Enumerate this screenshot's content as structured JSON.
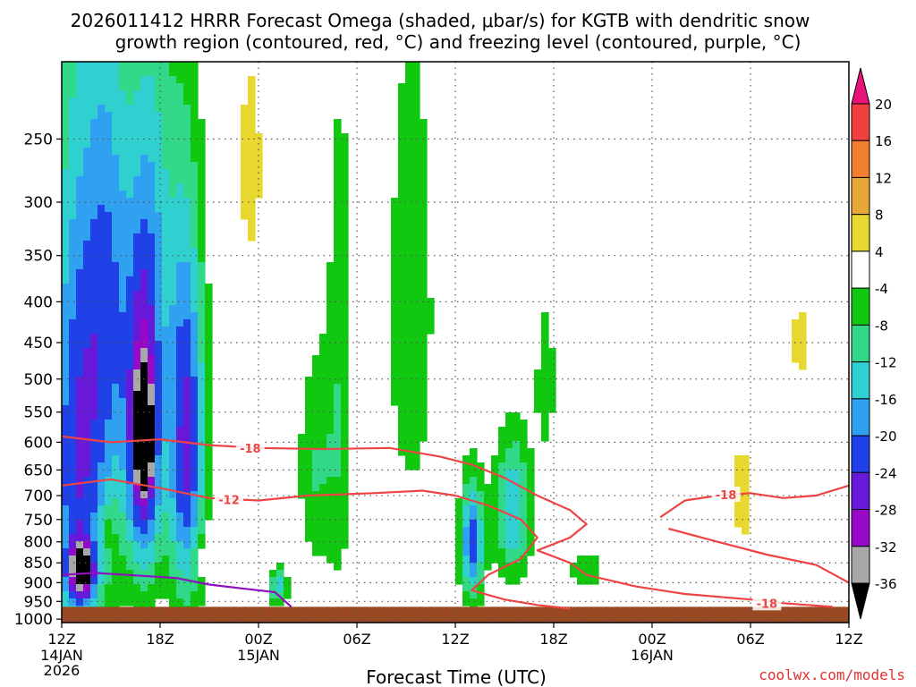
{
  "chart_data": {
    "type": "heatmap",
    "title_line1": "2026011412 HRRR Forecast Omega (shaded, μbar/s) for KGTB with dendritic snow",
    "title_line2": "growth region (contoured, red, °C) and freezing level (contoured, purple, °C)",
    "xlabel": "Forecast Time (UTC)",
    "ylabel": "",
    "credit": "coolwx.com/models",
    "xlim": [
      0,
      48
    ],
    "ylim": [
      1010,
      200
    ],
    "grid": true,
    "x_ticks": [
      {
        "hour": 0,
        "label": "12Z",
        "sub1": "14JAN",
        "sub2": "2026"
      },
      {
        "hour": 6,
        "label": "18Z"
      },
      {
        "hour": 12,
        "label": "00Z",
        "sub1": "15JAN"
      },
      {
        "hour": 18,
        "label": "06Z"
      },
      {
        "hour": 24,
        "label": "12Z"
      },
      {
        "hour": 30,
        "label": "18Z"
      },
      {
        "hour": 36,
        "label": "00Z",
        "sub1": "16JAN"
      },
      {
        "hour": 42,
        "label": "06Z"
      },
      {
        "hour": 48,
        "label": "12Z"
      }
    ],
    "y_ticks": [
      250,
      300,
      350,
      400,
      450,
      500,
      550,
      600,
      650,
      700,
      750,
      800,
      850,
      900,
      950,
      1000
    ],
    "y_tick_labels": [
      "250",
      "300",
      "350",
      "400",
      "450",
      "500",
      "550",
      "600",
      "650",
      "700",
      "750",
      "800",
      "850",
      "900",
      "950",
      "1000"
    ],
    "colorbar": {
      "labels": [
        "20",
        "16",
        "12",
        "8",
        "4",
        "-4",
        "-8",
        "-12",
        "-16",
        "-20",
        "-24",
        "-28",
        "-32",
        "-36"
      ],
      "bins": [
        {
          "lo": 20,
          "hi": 99,
          "color": "#e8147a"
        },
        {
          "lo": 16,
          "hi": 20,
          "color": "#f04040"
        },
        {
          "lo": 12,
          "hi": 16,
          "color": "#f08030"
        },
        {
          "lo": 8,
          "hi": 12,
          "color": "#e8a838"
        },
        {
          "lo": 4,
          "hi": 8,
          "color": "#e8d830"
        },
        {
          "lo": -4,
          "hi": 4,
          "color": "#ffffff"
        },
        {
          "lo": -8,
          "hi": -4,
          "color": "#10c810"
        },
        {
          "lo": -12,
          "hi": -8,
          "color": "#30d888"
        },
        {
          "lo": -16,
          "hi": -12,
          "color": "#30d0d0"
        },
        {
          "lo": -20,
          "hi": -16,
          "color": "#30a0f0"
        },
        {
          "lo": -24,
          "hi": -20,
          "color": "#2040e8"
        },
        {
          "lo": -28,
          "hi": -24,
          "color": "#6818d8"
        },
        {
          "lo": -32,
          "hi": -28,
          "color": "#9808c8"
        },
        {
          "lo": -36,
          "hi": -32,
          "color": "#a8a8a8"
        },
        {
          "lo": -99,
          "hi": -36,
          "color": "#000000"
        }
      ]
    },
    "omega_cells": [
      {
        "x": 1.0,
        "p": 630,
        "sx": 1.4,
        "sp": 340,
        "v": -24
      },
      {
        "x": 1.2,
        "p": 870,
        "sx": 0.5,
        "sp": 45,
        "v": -30
      },
      {
        "x": 3.0,
        "p": 380,
        "sx": 1.0,
        "sp": 200,
        "v": -14
      },
      {
        "x": 5.0,
        "p": 600,
        "sx": 0.8,
        "sp": 190,
        "v": -30
      },
      {
        "x": 5.0,
        "p": 590,
        "sx": 0.3,
        "sp": 55,
        "v": -40
      },
      {
        "x": 5.6,
        "p": 300,
        "sx": 1.0,
        "sp": 150,
        "v": -10
      },
      {
        "x": 7.6,
        "p": 600,
        "sx": 0.8,
        "sp": 230,
        "v": -26
      },
      {
        "x": 13.2,
        "p": 910,
        "sx": 0.4,
        "sp": 35,
        "v": -14
      },
      {
        "x": 15.5,
        "p": 650,
        "sx": 0.8,
        "sp": 150,
        "v": -8
      },
      {
        "x": 17.0,
        "p": 520,
        "sx": 0.6,
        "sp": 280,
        "v": -7
      },
      {
        "x": 21.3,
        "p": 420,
        "sx": 1.0,
        "sp": 200,
        "v": -8
      },
      {
        "x": 25.0,
        "p": 800,
        "sx": 0.5,
        "sp": 100,
        "v": -22
      },
      {
        "x": 27.5,
        "p": 730,
        "sx": 0.8,
        "sp": 110,
        "v": -16
      },
      {
        "x": 29.5,
        "p": 500,
        "sx": 0.5,
        "sp": 100,
        "v": -6
      },
      {
        "x": 32.0,
        "p": 870,
        "sx": 1.0,
        "sp": 40,
        "v": -6
      },
      {
        "x": 2.8,
        "p": 770,
        "sx": 0.3,
        "sp": 30,
        "v": 6
      },
      {
        "x": 9.0,
        "p": 830,
        "sx": 0.7,
        "sp": 45,
        "v": 6
      },
      {
        "x": 11.5,
        "p": 270,
        "sx": 0.6,
        "sp": 70,
        "v": 6
      },
      {
        "x": 45.0,
        "p": 450,
        "sx": 0.4,
        "sp": 50,
        "v": 6
      },
      {
        "x": 41.5,
        "p": 700,
        "sx": 0.6,
        "sp": 90,
        "v": 6
      }
    ],
    "contours": [
      {
        "name": "-18 C isotherm",
        "color": "#ee4444",
        "label": "-18",
        "label_at": [
          11.5,
          610
        ],
        "segments": [
          [
            [
              0,
              590
            ],
            [
              3,
              600
            ],
            [
              6,
              595
            ],
            [
              9,
              605
            ],
            [
              12,
              610
            ],
            [
              16,
              612
            ],
            [
              20,
              610
            ],
            [
              23,
              625
            ],
            [
              25,
              640
            ],
            [
              27,
              665
            ],
            [
              29,
              700
            ],
            [
              31,
              730
            ],
            [
              32,
              760
            ],
            [
              31,
              790
            ],
            [
              29,
              820
            ],
            [
              31,
              850
            ],
            [
              32,
              880
            ],
            [
              35,
              910
            ],
            [
              38,
              930
            ],
            [
              42,
              945
            ],
            [
              44,
              955
            ],
            [
              47,
              965
            ]
          ],
          [
            [
              36.5,
              745
            ],
            [
              38,
              710
            ],
            [
              40,
              700
            ],
            [
              42,
              695
            ],
            [
              44,
              705
            ],
            [
              46,
              700
            ],
            [
              48,
              680
            ]
          ],
          [
            [
              37,
              770
            ],
            [
              40,
              800
            ],
            [
              43,
              830
            ],
            [
              46,
              855
            ],
            [
              48,
              900
            ]
          ]
        ],
        "label2": "-18",
        "label2_at": [
          40.5,
          698
        ],
        "label3": "-18",
        "label3_at": [
          43,
          955
        ]
      },
      {
        "name": "-12 C isotherm",
        "color": "#ee4444",
        "label": "-12",
        "label_at": [
          10.2,
          708
        ],
        "segments": [
          [
            [
              0,
              680
            ],
            [
              3,
              668
            ],
            [
              6,
              685
            ],
            [
              9,
              705
            ],
            [
              12,
              710
            ],
            [
              15,
              700
            ],
            [
              19,
              695
            ],
            [
              22,
              690
            ],
            [
              24,
              700
            ],
            [
              26,
              720
            ],
            [
              28,
              750
            ],
            [
              29,
              790
            ],
            [
              28,
              840
            ],
            [
              26,
              880
            ],
            [
              25,
              920
            ],
            [
              27,
              945
            ],
            [
              29,
              960
            ],
            [
              31,
              970
            ]
          ]
        ]
      },
      {
        "name": "freezing level",
        "color": "#9010c0",
        "label": "",
        "segments": [
          [
            [
              0,
              880
            ],
            [
              2,
              875
            ],
            [
              4,
              880
            ],
            [
              7,
              888
            ],
            [
              9,
              905
            ],
            [
              11,
              915
            ],
            [
              13,
              925
            ],
            [
              14,
              965
            ]
          ]
        ]
      }
    ],
    "ground": {
      "color": "#9a4a22",
      "top_p": 965,
      "bottom_p": 1010
    }
  }
}
